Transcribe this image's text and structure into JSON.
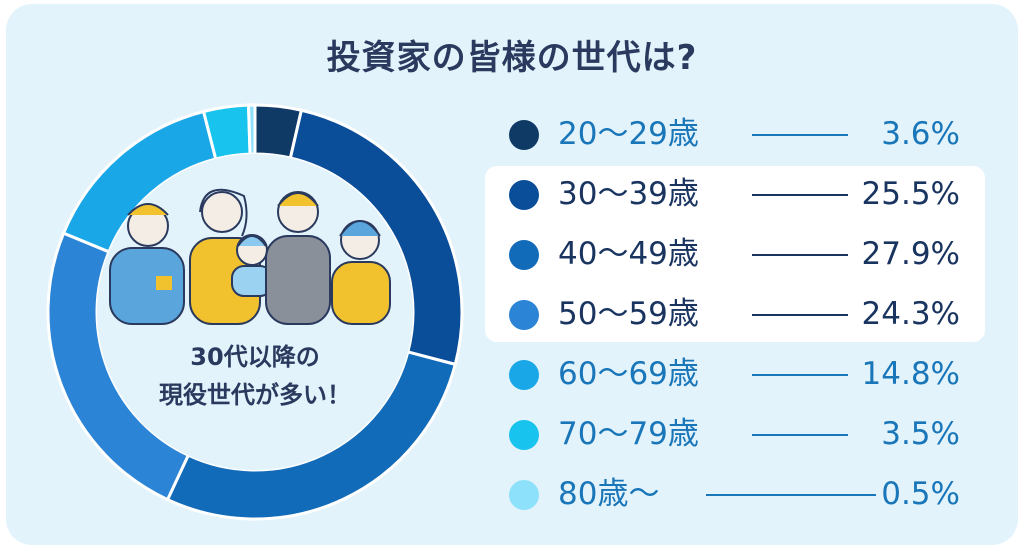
{
  "header": {
    "title": "投資家の皆様の世代は?"
  },
  "center": {
    "line1": "30代以降の",
    "line2": "現役世代が多い！"
  },
  "chart_data": {
    "type": "pie",
    "title": "投資家の皆様の世代は?",
    "categories": [
      "20〜29歳",
      "30〜39歳",
      "40〜49歳",
      "50〜59歳",
      "60〜69歳",
      "70〜79歳",
      "80歳〜"
    ],
    "values": [
      3.6,
      25.5,
      27.9,
      24.3,
      14.8,
      3.5,
      0.5
    ],
    "value_labels": [
      "3.6%",
      "25.5%",
      "27.9%",
      "24.3%",
      "14.8%",
      "3.5%",
      "0.5%"
    ],
    "colors": [
      "#103a66",
      "#0a4e9a",
      "#126bb8",
      "#2b84d6",
      "#1aa7e8",
      "#18c4ee",
      "#8ee1fb"
    ],
    "legend_placement": "right",
    "highlighted_categories": [
      "30〜39歳",
      "40〜49歳",
      "50〜59歳"
    ]
  }
}
